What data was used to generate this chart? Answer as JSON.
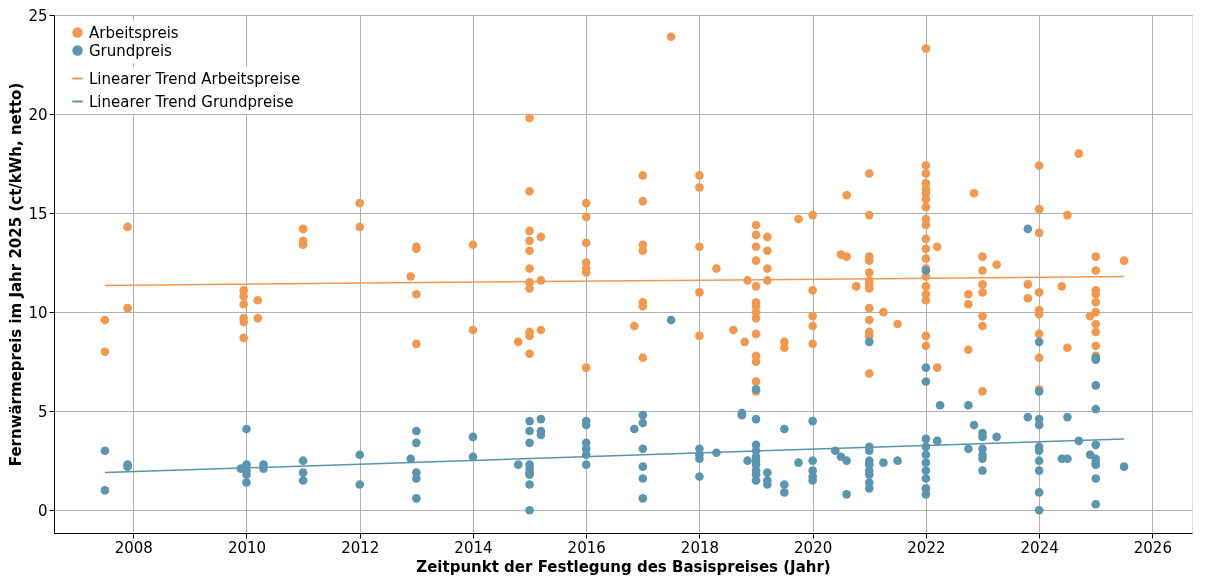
{
  "chart_data": {
    "type": "scatter",
    "xlabel": "Zeitpunkt der Festlegung des Basispreises (Jahr)",
    "ylabel": "Fernwärmepreis im Jahr 2025 (ct/kWh, netto)",
    "xlim": [
      2006.6,
      2026.7
    ],
    "xticks": [
      2008,
      2010,
      2012,
      2014,
      2016,
      2018,
      2020,
      2022,
      2024,
      2026
    ],
    "ylim": [
      -1.15,
      25
    ],
    "yticks": [
      0,
      5,
      10,
      15,
      20,
      25
    ],
    "grid": true,
    "legend": "top left",
    "series": [
      {
        "name": "Arbeitspreis",
        "marker": "circle",
        "color": "#f0994f",
        "x": [
          2007.5,
          2007.5,
          2007.9,
          2007.9,
          2009.95,
          2009.95,
          2009.95,
          2009.95,
          2009.95,
          2009.95,
          2010.2,
          2010.2,
          2011,
          2011,
          2011,
          2012,
          2012,
          2012.9,
          2013,
          2013,
          2013,
          2013,
          2014,
          2014,
          2014.8,
          2015,
          2015,
          2015,
          2015,
          2015,
          2015,
          2015,
          2015,
          2015,
          2015,
          2015,
          2015.2,
          2015.2,
          2015.2,
          2016,
          2016,
          2016,
          2016,
          2016,
          2016,
          2016,
          2016.85,
          2017,
          2017,
          2017,
          2017,
          2017,
          2017,
          2017,
          2017.5,
          2018,
          2018,
          2018,
          2018,
          2018,
          2018.3,
          2018.6,
          2018.8,
          2018.85,
          2019,
          2019,
          2019,
          2019,
          2019,
          2019,
          2019,
          2019,
          2019,
          2019,
          2019,
          2019,
          2019,
          2019,
          2019.2,
          2019.2,
          2019.2,
          2019.2,
          2019.5,
          2019.5,
          2019.75,
          2020,
          2020,
          2020,
          2020,
          2020,
          2020.5,
          2020.6,
          2020.6,
          2020.77,
          2021,
          2021,
          2021,
          2021,
          2021,
          2021,
          2021,
          2021,
          2021,
          2021,
          2021,
          2021,
          2021,
          2021.25,
          2021.5,
          2022,
          2022,
          2022,
          2022,
          2022,
          2022,
          2022,
          2022,
          2022,
          2022,
          2022,
          2022,
          2022,
          2022,
          2022,
          2022,
          2022,
          2022,
          2022,
          2022,
          2022.2,
          2022.2,
          2022.75,
          2022.75,
          2022.75,
          2022.85,
          2023,
          2023,
          2023,
          2023,
          2023,
          2023,
          2023,
          2023.25,
          2023.8,
          2023.8,
          2024,
          2024,
          2024,
          2024,
          2024,
          2024,
          2024,
          2024,
          2024,
          2024.4,
          2024.5,
          2024.5,
          2024.7,
          2024.9,
          2025,
          2025,
          2025,
          2025,
          2025,
          2025,
          2025,
          2025,
          2025,
          2025,
          2025.5
        ],
        "values": [
          9.6,
          8.0,
          14.3,
          10.2,
          11.1,
          10.8,
          10.4,
          9.7,
          9.5,
          8.7,
          10.6,
          9.7,
          14.2,
          13.6,
          13.4,
          15.5,
          14.3,
          11.8,
          13.3,
          13.2,
          10.9,
          8.4,
          13.4,
          9.1,
          8.5,
          19.8,
          16.1,
          14.1,
          13.6,
          13.1,
          12.2,
          11.5,
          11.2,
          9.0,
          8.8,
          7.9,
          13.8,
          11.6,
          9.1,
          15.5,
          14.8,
          13.5,
          12.5,
          12.2,
          12.0,
          7.2,
          9.3,
          16.9,
          15.6,
          13.4,
          13.1,
          10.5,
          10.3,
          7.7,
          23.9,
          16.9,
          16.3,
          13.3,
          11.0,
          8.8,
          12.2,
          9.1,
          8.5,
          11.6,
          14.4,
          13.9,
          13.3,
          12.6,
          11.3,
          10.5,
          10.3,
          10.0,
          9.7,
          8.9,
          7.8,
          7.5,
          6.5,
          6.0,
          13.8,
          13.1,
          12.2,
          11.6,
          8.5,
          8.2,
          14.7,
          14.9,
          11.1,
          9.8,
          9.3,
          8.4,
          12.9,
          15.9,
          12.8,
          11.3,
          17.0,
          14.9,
          12.8,
          12.6,
          12.0,
          11.6,
          11.4,
          11.2,
          10.2,
          9.6,
          9.0,
          8.8,
          6.9,
          10.0,
          9.4,
          23.3,
          17.4,
          17.0,
          16.5,
          16.2,
          16.0,
          15.7,
          15.3,
          14.7,
          14.4,
          13.7,
          13.2,
          12.7,
          12.2,
          11.8,
          11.3,
          10.9,
          10.6,
          8.8,
          8.3,
          13.3,
          7.2,
          10.9,
          10.4,
          8.1,
          16.0,
          12.8,
          12.1,
          11.4,
          11.0,
          9.8,
          9.3,
          6.0,
          12.4,
          11.4,
          10.7,
          17.4,
          15.2,
          14.0,
          11.0,
          10.1,
          9.9,
          8.9,
          7.7,
          6.1,
          11.3,
          14.9,
          8.2,
          18.0,
          9.8,
          12.8,
          12.1,
          11.1,
          10.9,
          10.5,
          10.0,
          9.4,
          9.0,
          8.3,
          7.8,
          12.6
        ]
      },
      {
        "name": "Grundpreis",
        "marker": "circle",
        "color": "#5b95b0",
        "x": [
          2007.5,
          2007.5,
          2007.9,
          2007.9,
          2009.9,
          2010,
          2010,
          2010,
          2010,
          2010,
          2010.3,
          2010.3,
          2011,
          2011,
          2011,
          2012,
          2012,
          2012.9,
          2013,
          2013,
          2013,
          2013,
          2013,
          2014,
          2014,
          2014.8,
          2015,
          2015,
          2015,
          2015,
          2015,
          2015,
          2015,
          2015,
          2015,
          2015.2,
          2015.2,
          2015.2,
          2016,
          2016,
          2016,
          2016,
          2016,
          2016,
          2016.85,
          2017,
          2017,
          2017,
          2017,
          2017,
          2017,
          2017.5,
          2018,
          2018,
          2018,
          2018,
          2018.3,
          2018.75,
          2018.75,
          2018.85,
          2019,
          2019,
          2019,
          2019,
          2019,
          2019,
          2019,
          2019,
          2019,
          2019,
          2019.2,
          2019.2,
          2019.2,
          2019.5,
          2019.5,
          2019.5,
          2019.75,
          2020,
          2020,
          2020,
          2020,
          2020,
          2020.4,
          2020.5,
          2020.6,
          2020.6,
          2021,
          2021,
          2021,
          2021,
          2021,
          2021,
          2021,
          2021,
          2021,
          2021.25,
          2021.5,
          2022,
          2022,
          2022,
          2022,
          2022,
          2022,
          2022,
          2022,
          2022,
          2022,
          2022,
          2022.2,
          2022.25,
          2022.75,
          2022.75,
          2022.85,
          2023,
          2023,
          2023,
          2023,
          2023,
          2023,
          2023.25,
          2023.8,
          2023.8,
          2024,
          2024,
          2024,
          2024,
          2024,
          2024,
          2024,
          2024,
          2024,
          2024,
          2024.4,
          2024.5,
          2024.5,
          2024.7,
          2024.9,
          2025,
          2025,
          2025,
          2025,
          2025,
          2025,
          2025,
          2025,
          2025,
          2025,
          2025.5
        ],
        "values": [
          3.0,
          1.0,
          2.3,
          2.2,
          2.1,
          4.1,
          2.3,
          2.0,
          1.8,
          1.4,
          2.3,
          2.1,
          2.5,
          1.9,
          1.5,
          2.8,
          1.3,
          2.6,
          4.0,
          3.4,
          1.9,
          1.6,
          0.6,
          3.7,
          2.7,
          2.3,
          4.5,
          4.0,
          3.4,
          2.3,
          2.1,
          1.9,
          1.8,
          1.3,
          0.0,
          4.6,
          4.0,
          3.8,
          4.5,
          4.3,
          3.4,
          3.1,
          2.8,
          2.3,
          4.1,
          4.8,
          4.4,
          3.1,
          2.2,
          1.6,
          0.6,
          9.6,
          3.1,
          2.8,
          2.6,
          1.7,
          2.9,
          4.9,
          4.8,
          2.5,
          6.1,
          4.6,
          3.3,
          3.0,
          2.7,
          2.5,
          2.3,
          2.0,
          1.8,
          1.5,
          1.9,
          1.5,
          1.3,
          4.1,
          1.3,
          0.9,
          2.4,
          4.5,
          2.5,
          2.0,
          1.7,
          1.5,
          3.0,
          2.7,
          2.5,
          0.8,
          8.5,
          3.2,
          3.0,
          2.5,
          2.3,
          2.0,
          1.8,
          1.4,
          1.1,
          2.4,
          2.5,
          12.1,
          7.2,
          6.5,
          3.6,
          3.2,
          2.8,
          2.4,
          2.0,
          1.6,
          1.1,
          0.8,
          3.5,
          5.3,
          5.3,
          3.1,
          4.3,
          3.9,
          3.7,
          3.1,
          2.8,
          2.6,
          2.0,
          3.7,
          14.2,
          4.7,
          8.5,
          6.0,
          4.6,
          4.3,
          3.2,
          3.0,
          2.5,
          2.0,
          0.9,
          0.0,
          2.6,
          4.7,
          2.6,
          3.5,
          2.8,
          7.7,
          7.6,
          6.3,
          5.1,
          3.3,
          2.6,
          2.4,
          2.3,
          1.6,
          0.3,
          2.2
        ]
      },
      {
        "name": "Linearer Trend Arbeitspreise",
        "type": "line",
        "marker": "none",
        "line_style": "solid",
        "color": "#ee9a55",
        "x": [
          2007.5,
          2025.5
        ],
        "values": [
          11.35,
          11.8
        ]
      },
      {
        "name": "Linearer Trend Grundpreise",
        "type": "line",
        "marker": "none",
        "line_style": "solid",
        "color": "#5a93ab",
        "x": [
          2007.5,
          2025.5
        ],
        "values": [
          1.9,
          3.6
        ]
      }
    ]
  }
}
